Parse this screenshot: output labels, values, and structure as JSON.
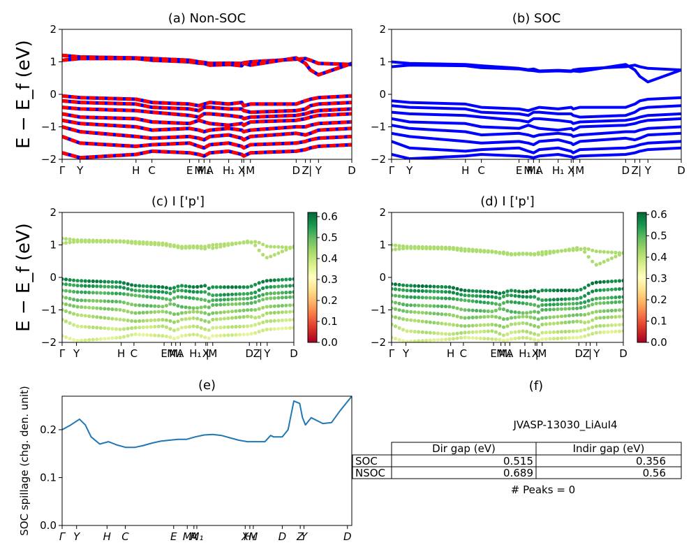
{
  "chart_data": [
    {
      "id": "a",
      "type": "line",
      "title": "(a) Non-SOC",
      "ylabel": "E − E_f (eV)",
      "ylim": [
        -2,
        2
      ],
      "yticks": [
        "2",
        "1",
        "0",
        "−1",
        "−2"
      ],
      "xticks": [
        "Γ",
        "Y",
        "H",
        "C",
        "E",
        "M",
        "M₁",
        "A",
        "H₁",
        "X",
        "|",
        "M",
        "D",
        "Z",
        "|",
        "Y",
        "D"
      ],
      "series": [
        {
          "values": [
            1.2,
            1.15,
            1.12,
            1.1,
            1.05,
            1.0,
            0.98,
            0.95,
            0.96,
            0.95,
            0.97,
            1.0,
            1.08,
            1.1,
            1.05,
            0.95,
            0.92
          ]
        },
        {
          "values": [
            1.05,
            1.1,
            1.1,
            1.05,
            1.0,
            0.96,
            0.95,
            0.9,
            0.92,
            0.88,
            0.95,
            0.9,
            1.12,
            0.95,
            0.75,
            0.6,
            0.95
          ]
        },
        {
          "values": [
            -0.05,
            -0.1,
            -0.15,
            -0.25,
            -0.3,
            -0.35,
            -0.3,
            -0.25,
            -0.3,
            -0.25,
            -0.35,
            -0.3,
            -0.3,
            -0.2,
            -0.15,
            -0.1,
            -0.05
          ]
        },
        {
          "values": [
            -0.2,
            -0.25,
            -0.3,
            -0.4,
            -0.45,
            -0.5,
            -0.4,
            -0.4,
            -0.45,
            -0.45,
            -0.5,
            -0.55,
            -0.5,
            -0.45,
            -0.35,
            -0.3,
            -0.25
          ]
        },
        {
          "values": [
            -0.4,
            -0.45,
            -0.5,
            -0.55,
            -0.65,
            -0.7,
            -0.6,
            -0.6,
            -0.65,
            -0.7,
            -0.75,
            -0.7,
            -0.65,
            -0.6,
            -0.55,
            -0.5,
            -0.45
          ]
        },
        {
          "values": [
            -0.6,
            -0.7,
            -0.75,
            -0.85,
            -0.9,
            -0.8,
            -0.85,
            -0.9,
            -0.95,
            -0.9,
            -0.95,
            -0.85,
            -0.8,
            -0.75,
            -0.7,
            -0.65,
            -0.6
          ]
        },
        {
          "values": [
            -0.8,
            -0.9,
            -1.0,
            -1.1,
            -1.05,
            -1.1,
            -1.15,
            -1.1,
            -1.05,
            -1.1,
            -1.15,
            -1.1,
            -1.0,
            -1.0,
            -0.95,
            -0.9,
            -0.85
          ]
        },
        {
          "values": [
            -1.0,
            -1.15,
            -1.3,
            -1.35,
            -1.3,
            -1.35,
            -1.4,
            -1.3,
            -1.25,
            -1.35,
            -1.4,
            -1.3,
            -1.2,
            -1.25,
            -1.2,
            -1.1,
            -1.05
          ]
        },
        {
          "values": [
            -1.3,
            -1.5,
            -1.6,
            -1.55,
            -1.5,
            -1.6,
            -1.65,
            -1.55,
            -1.5,
            -1.6,
            -1.65,
            -1.55,
            -1.5,
            -1.45,
            -1.4,
            -1.35,
            -1.3
          ]
        },
        {
          "values": [
            -1.8,
            -1.95,
            -1.85,
            -1.75,
            -1.8,
            -1.85,
            -1.9,
            -1.8,
            -1.75,
            -1.85,
            -1.9,
            -1.8,
            -1.75,
            -1.7,
            -1.65,
            -1.6,
            -1.55
          ]
        }
      ]
    },
    {
      "id": "b",
      "type": "line",
      "title": "(b) SOC",
      "ylim": [
        -2,
        2
      ],
      "yticks": [
        "2",
        "1",
        "0",
        "−1",
        "−2"
      ],
      "xticks": [
        "Γ",
        "Y",
        "H",
        "C",
        "E",
        "M",
        "M₁",
        "A",
        "H₁",
        "X",
        "|",
        "M",
        "D",
        "Z",
        "|",
        "Y",
        "D"
      ],
      "series": [
        {
          "values": [
            1.0,
            0.95,
            0.92,
            0.88,
            0.8,
            0.76,
            0.78,
            0.72,
            0.74,
            0.72,
            0.75,
            0.78,
            0.85,
            0.9,
            0.85,
            0.8,
            0.75
          ]
        },
        {
          "values": [
            0.85,
            0.9,
            0.88,
            0.82,
            0.78,
            0.74,
            0.73,
            0.7,
            0.72,
            0.7,
            0.72,
            0.7,
            0.92,
            0.75,
            0.55,
            0.38,
            0.75
          ]
        },
        {
          "values": [
            -0.2,
            -0.25,
            -0.3,
            -0.4,
            -0.45,
            -0.5,
            -0.45,
            -0.4,
            -0.45,
            -0.4,
            -0.45,
            -0.4,
            -0.4,
            -0.3,
            -0.2,
            -0.15,
            -0.1
          ]
        },
        {
          "values": [
            -0.35,
            -0.4,
            -0.45,
            -0.55,
            -0.6,
            -0.65,
            -0.55,
            -0.55,
            -0.6,
            -0.6,
            -0.65,
            -0.7,
            -0.65,
            -0.55,
            -0.45,
            -0.4,
            -0.35
          ]
        },
        {
          "values": [
            -0.55,
            -0.6,
            -0.65,
            -0.7,
            -0.8,
            -0.85,
            -0.75,
            -0.75,
            -0.8,
            -0.85,
            -0.9,
            -0.85,
            -0.8,
            -0.75,
            -0.7,
            -0.65,
            -0.6
          ]
        },
        {
          "values": [
            -0.75,
            -0.85,
            -0.9,
            -1.0,
            -1.05,
            -0.95,
            -1.0,
            -1.05,
            -1.1,
            -1.05,
            -1.1,
            -1.0,
            -0.95,
            -0.9,
            -0.85,
            -0.8,
            -0.75
          ]
        },
        {
          "values": [
            -0.95,
            -1.05,
            -1.15,
            -1.25,
            -1.2,
            -1.25,
            -1.3,
            -1.25,
            -1.2,
            -1.25,
            -1.3,
            -1.25,
            -1.15,
            -1.15,
            -1.1,
            -1.05,
            -1.0
          ]
        },
        {
          "values": [
            -1.2,
            -1.3,
            -1.45,
            -1.5,
            -1.45,
            -1.5,
            -1.55,
            -1.45,
            -1.4,
            -1.5,
            -1.55,
            -1.45,
            -1.35,
            -1.4,
            -1.35,
            -1.25,
            -1.2
          ]
        },
        {
          "values": [
            -1.45,
            -1.65,
            -1.75,
            -1.7,
            -1.65,
            -1.75,
            -1.8,
            -1.7,
            -1.65,
            -1.75,
            -1.8,
            -1.7,
            -1.65,
            -1.6,
            -1.55,
            -1.5,
            -1.45
          ]
        },
        {
          "values": [
            -1.85,
            -1.98,
            -1.9,
            -1.85,
            -1.9,
            -1.92,
            -1.95,
            -1.9,
            -1.85,
            -1.92,
            -1.95,
            -1.9,
            -1.85,
            -1.8,
            -1.75,
            -1.7,
            -1.65
          ]
        }
      ]
    },
    {
      "id": "c",
      "type": "scatter",
      "title": "(c)  I ['p']",
      "ylabel": "E − E_f (eV)",
      "ylim": [
        -2,
        2
      ],
      "yticks": [
        "2",
        "1",
        "0",
        "−1",
        "−2"
      ],
      "xticks": [
        "Γ",
        "Y",
        "H",
        "C",
        "E",
        "M",
        "M₁",
        "A",
        "H₁",
        "X",
        "|",
        "M",
        "D",
        "Z",
        "|",
        "Y",
        "D"
      ],
      "colorbar": {
        "min": 0.0,
        "max": 0.62,
        "ticks": [
          "0.6",
          "0.5",
          "0.4",
          "0.3",
          "0.2",
          "0.1",
          "0.0"
        ]
      },
      "note": "point positions follow the bands of panel (a); color = projection weight"
    },
    {
      "id": "d",
      "type": "scatter",
      "title": "(d) I ['p']",
      "ylim": [
        -2,
        2
      ],
      "yticks": [
        "2",
        "1",
        "0",
        "−1",
        "−2"
      ],
      "xticks": [
        "Γ",
        "Y",
        "H",
        "C",
        "E",
        "M",
        "M₁",
        "A",
        "H₁",
        "X",
        "|",
        "M",
        "D",
        "Z",
        "|",
        "Y",
        "D"
      ],
      "colorbar": {
        "min": 0.0,
        "max": 0.61,
        "ticks": [
          "0.6",
          "0.5",
          "0.4",
          "0.3",
          "0.2",
          "0.1",
          "0.0"
        ]
      },
      "note": "point positions follow the bands of panel (b); color = projection weight"
    },
    {
      "id": "e",
      "type": "line",
      "title": "(e)",
      "ylabel": "SOC spillage (chg. den. unit)",
      "ylim": [
        0.0,
        0.27
      ],
      "yticks": [
        "0.2",
        "0.1",
        "0.0"
      ],
      "xticks": [
        "Γ",
        "Y",
        "H",
        "C",
        "E",
        "M",
        "M₁",
        "A",
        "X",
        "H₁",
        "M",
        "D",
        "Z",
        "Y",
        "D"
      ],
      "x": [
        0,
        0.03,
        0.06,
        0.08,
        0.1,
        0.13,
        0.16,
        0.19,
        0.22,
        0.25,
        0.28,
        0.31,
        0.34,
        0.37,
        0.4,
        0.43,
        0.46,
        0.49,
        0.52,
        0.55,
        0.58,
        0.61,
        0.64,
        0.67,
        0.7,
        0.72,
        0.73,
        0.76,
        0.78,
        0.8,
        0.82,
        0.83,
        0.84,
        0.86,
        0.9,
        0.93,
        0.96,
        1.0
      ],
      "series": [
        {
          "color": "#1f77b4",
          "values": [
            0.2,
            0.21,
            0.222,
            0.21,
            0.185,
            0.17,
            0.175,
            0.168,
            0.163,
            0.163,
            0.167,
            0.172,
            0.176,
            0.178,
            0.18,
            0.18,
            0.185,
            0.189,
            0.19,
            0.188,
            0.183,
            0.178,
            0.175,
            0.175,
            0.175,
            0.188,
            0.185,
            0.185,
            0.2,
            0.26,
            0.255,
            0.225,
            0.21,
            0.225,
            0.213,
            0.215,
            0.24,
            0.27
          ]
        }
      ]
    }
  ],
  "panel_f": {
    "title": "(f)",
    "label": "JVASP-13030_LiAuI4",
    "columns": [
      "Dir gap (eV)",
      "Indir gap (eV)"
    ],
    "rows": [
      {
        "name": "SOC",
        "dir": "0.515",
        "indir": "0.356"
      },
      {
        "name": "NSOC",
        "dir": "0.689",
        "indir": "0.56"
      }
    ],
    "peaks": "# Peaks = 0"
  }
}
